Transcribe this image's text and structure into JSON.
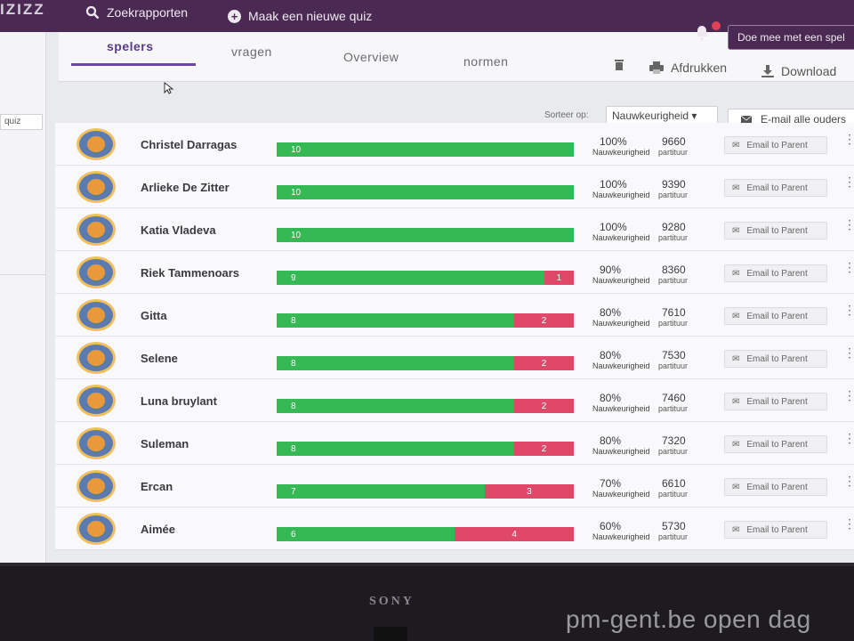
{
  "app": {
    "logo": "IZIZZ"
  },
  "topbar": {
    "search_label": "Zoekrapporten",
    "create_label": "Maak een nieuwe quiz",
    "join_label": "Doe mee met een spel"
  },
  "sidebar": {
    "quiz_chip": "quiz"
  },
  "tabs": [
    {
      "label": "spelers",
      "active": true
    },
    {
      "label": "vragen",
      "active": false
    },
    {
      "label": "Overview",
      "active": false
    },
    {
      "label": "normen",
      "active": false
    }
  ],
  "toolbar": {
    "print_label": "Afdrukken",
    "download_label": "Download"
  },
  "sort": {
    "label": "Sorteer op:",
    "value": "Nauwkeurigheid"
  },
  "email_all_label": "E-mail alle ouders",
  "columns": {
    "accuracy_label": "Nauwkeurigheid",
    "score_label": "partituur"
  },
  "email_button_label": "Email to Parent",
  "colors": {
    "correct": "#35b955",
    "wrong": "#e0486a",
    "accent": "#6b44a8",
    "topbar": "#4a2a52"
  },
  "players": [
    {
      "name": "Christel Darragas",
      "correct": 10,
      "wrong": 0,
      "accuracy": "100%",
      "score": "9660"
    },
    {
      "name": "Arlieke De Zitter",
      "correct": 10,
      "wrong": 0,
      "accuracy": "100%",
      "score": "9390"
    },
    {
      "name": "Katia Vladeva",
      "correct": 10,
      "wrong": 0,
      "accuracy": "100%",
      "score": "9280"
    },
    {
      "name": "Riek Tammenoars",
      "correct": 9,
      "wrong": 1,
      "accuracy": "90%",
      "score": "8360"
    },
    {
      "name": "Gitta",
      "correct": 8,
      "wrong": 2,
      "accuracy": "80%",
      "score": "7610"
    },
    {
      "name": "Selene",
      "correct": 8,
      "wrong": 2,
      "accuracy": "80%",
      "score": "7530"
    },
    {
      "name": "Luna bruylant",
      "correct": 8,
      "wrong": 2,
      "accuracy": "80%",
      "score": "7460"
    },
    {
      "name": "Suleman",
      "correct": 8,
      "wrong": 2,
      "accuracy": "80%",
      "score": "7320"
    },
    {
      "name": "Ercan",
      "correct": 7,
      "wrong": 3,
      "accuracy": "70%",
      "score": "6610"
    },
    {
      "name": "Aimée",
      "correct": 6,
      "wrong": 4,
      "accuracy": "60%",
      "score": "5730"
    }
  ],
  "bezel": {
    "brand": "SONY"
  },
  "watermark": "pm-gent.be open dag"
}
